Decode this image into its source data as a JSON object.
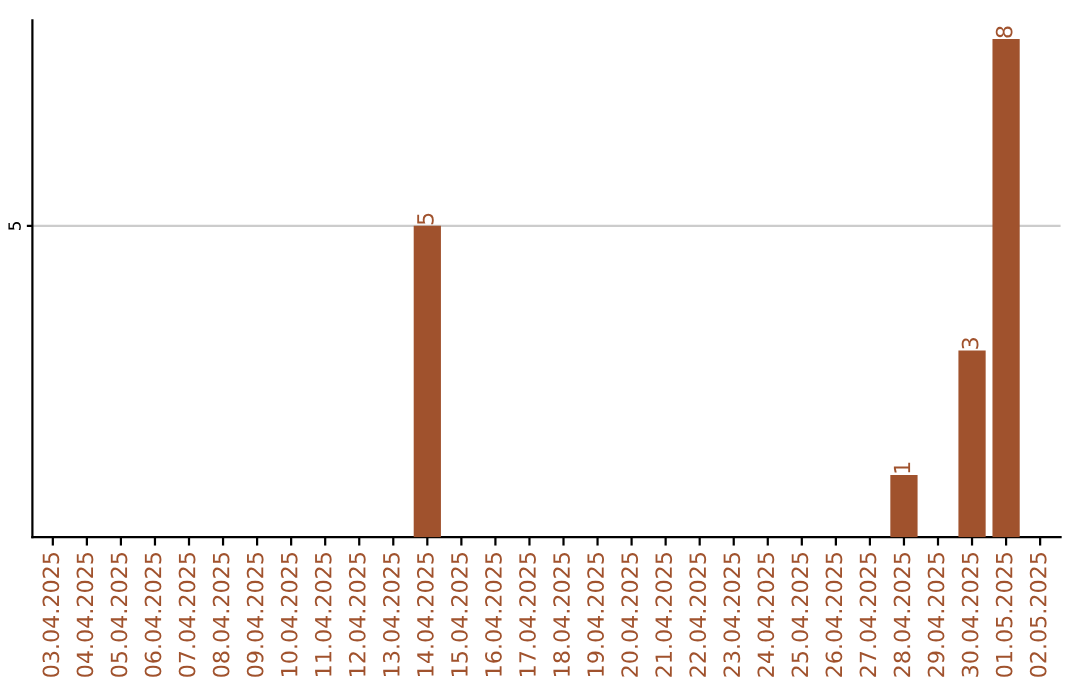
{
  "chart_data": {
    "type": "bar",
    "categories": [
      "03.04.2025",
      "04.04.2025",
      "05.04.2025",
      "06.04.2025",
      "07.04.2025",
      "08.04.2025",
      "09.04.2025",
      "10.04.2025",
      "11.04.2025",
      "12.04.2025",
      "13.04.2025",
      "14.04.2025",
      "15.04.2025",
      "16.04.2025",
      "17.04.2025",
      "18.04.2025",
      "19.04.2025",
      "20.04.2025",
      "21.04.2025",
      "22.04.2025",
      "23.04.2025",
      "24.04.2025",
      "25.04.2025",
      "26.04.2025",
      "27.04.2025",
      "28.04.2025",
      "29.04.2025",
      "30.04.2025",
      "01.05.2025",
      "02.05.2025"
    ],
    "values": [
      0,
      0,
      0,
      0,
      0,
      0,
      0,
      0,
      0,
      0,
      0,
      5,
      0,
      0,
      0,
      0,
      0,
      0,
      0,
      0,
      0,
      0,
      0,
      0,
      0,
      1,
      0,
      3,
      8,
      0
    ],
    "value_labels": [
      null,
      null,
      null,
      null,
      null,
      null,
      null,
      null,
      null,
      null,
      null,
      "5",
      null,
      null,
      null,
      null,
      null,
      null,
      null,
      null,
      null,
      null,
      null,
      null,
      null,
      "1",
      null,
      "3",
      "8",
      null
    ],
    "color": "#a0522d",
    "ylim": [
      0,
      8.3
    ],
    "yticks": [
      5
    ],
    "grid": "y"
  }
}
